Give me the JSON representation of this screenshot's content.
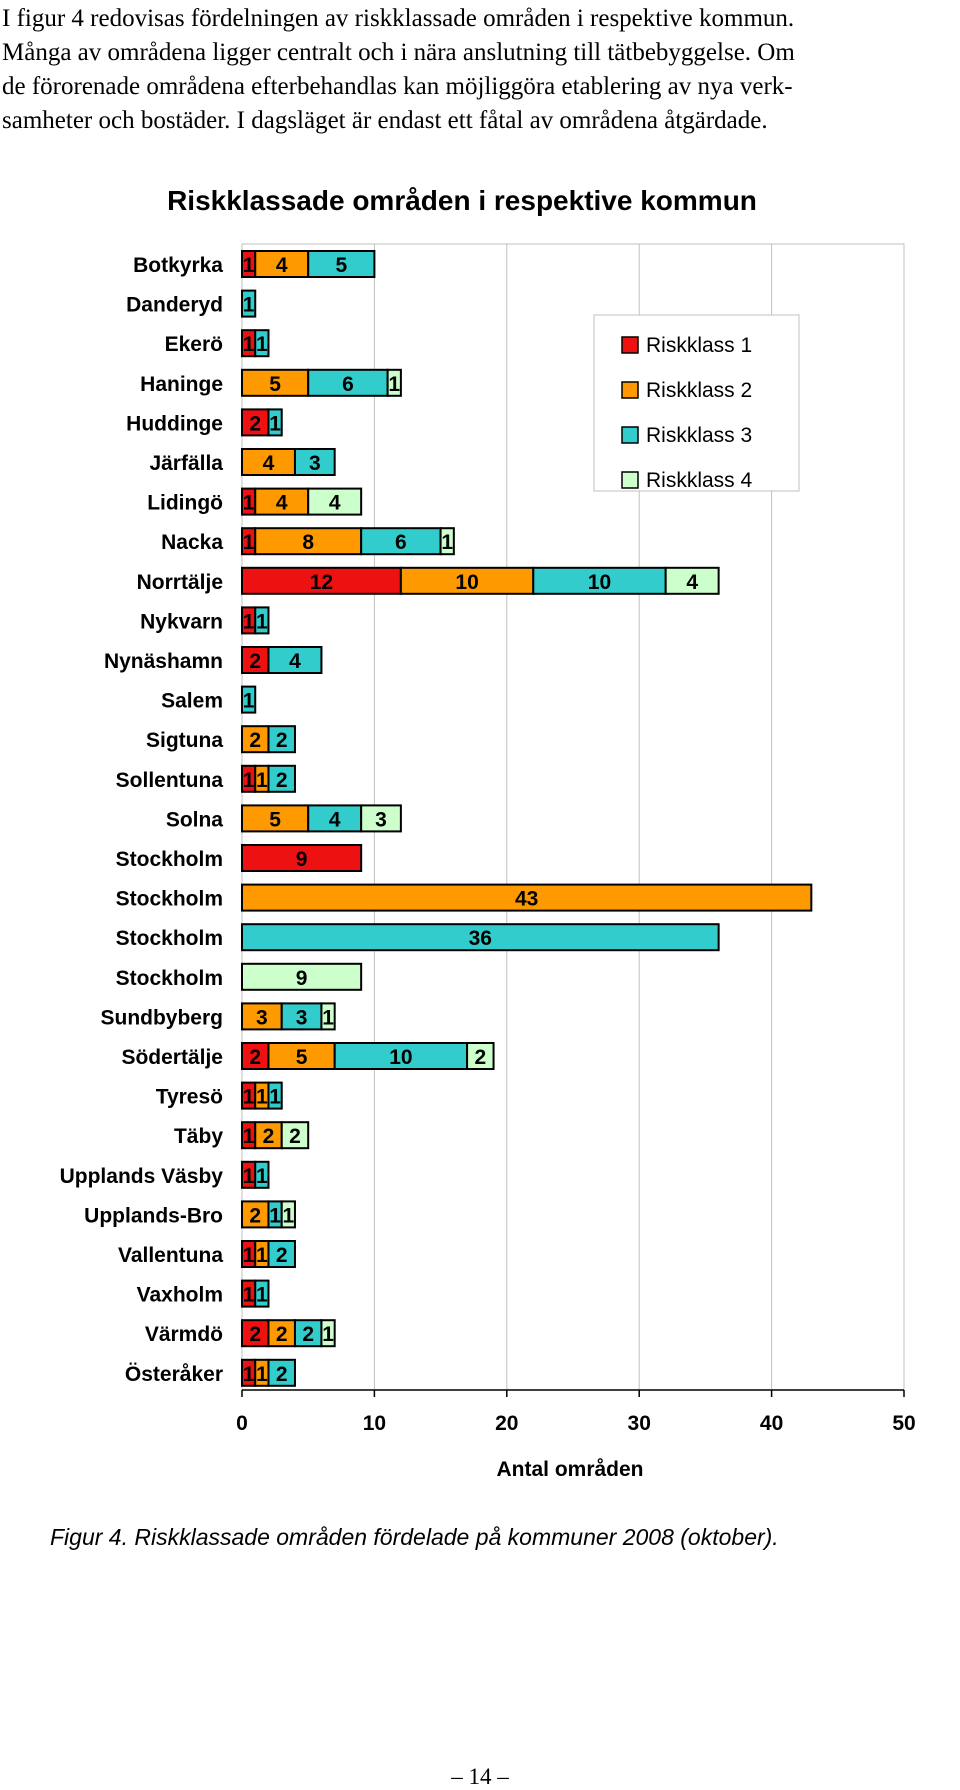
{
  "intro_lines": [
    "I figur 4 redovisas fördelningen av riskklassade områden i respektive kommun.",
    "Många av områdena ligger centralt och i nära anslutning till tätbebyggelse. Om",
    "de förorenade områdena efterbehandlas kan möjliggöra etablering av nya verk-",
    "samheter och bostäder. I dagsläget är endast ett fåtal av områdena åtgärdade."
  ],
  "caption": "Figur 4. Riskklassade områden fördelade på kommuner 2008 (oktober).",
  "page_number": "– 14 –",
  "chart_data": {
    "type": "bar",
    "orientation": "horizontal",
    "stacked": true,
    "title": "Riskklassade områden i respektive kommun",
    "xlabel": "Antal områden",
    "ylabel": "",
    "xlim": [
      0,
      50
    ],
    "xticks": [
      0,
      10,
      20,
      30,
      40,
      50
    ],
    "grid": true,
    "legend_position": "top-right",
    "categories": [
      "Botkyrka",
      "Danderyd",
      "Ekerö",
      "Haninge",
      "Huddinge",
      "Järfälla",
      "Lidingö",
      "Nacka",
      "Norrtälje",
      "Nykvarn",
      "Nynäshamn",
      "Salem",
      "Sigtuna",
      "Sollentuna",
      "Solna",
      "Stockholm",
      "Stockholm",
      "Stockholm",
      "Stockholm",
      "Sundbyberg",
      "Södertälje",
      "Tyresö",
      "Täby",
      "Upplands Väsby",
      "Upplands-Bro",
      "Vallentuna",
      "Vaxholm",
      "Värmdö",
      "Österåker"
    ],
    "series": [
      {
        "name": "Riskklass 1",
        "color": "#ee1111",
        "values": [
          1,
          0,
          1,
          0,
          2,
          0,
          1,
          1,
          12,
          1,
          2,
          0,
          0,
          1,
          0,
          9,
          0,
          0,
          0,
          0,
          2,
          1,
          1,
          1,
          0,
          1,
          1,
          2,
          1
        ]
      },
      {
        "name": "Riskklass 2",
        "color": "#ff9900",
        "values": [
          4,
          0,
          0,
          5,
          0,
          4,
          4,
          8,
          10,
          0,
          0,
          0,
          2,
          1,
          5,
          0,
          43,
          0,
          0,
          3,
          5,
          1,
          2,
          0,
          2,
          1,
          0,
          2,
          1
        ]
      },
      {
        "name": "Riskklass 3",
        "color": "#33cccc",
        "values": [
          5,
          1,
          1,
          6,
          1,
          3,
          0,
          6,
          10,
          1,
          4,
          1,
          2,
          2,
          4,
          0,
          0,
          36,
          0,
          3,
          10,
          1,
          0,
          1,
          1,
          2,
          1,
          2,
          2
        ]
      },
      {
        "name": "Riskklass 4",
        "color": "#ccffcc",
        "values": [
          0,
          0,
          0,
          1,
          0,
          0,
          4,
          1,
          4,
          0,
          0,
          0,
          0,
          0,
          3,
          0,
          0,
          0,
          9,
          1,
          2,
          0,
          2,
          0,
          1,
          0,
          0,
          1,
          0
        ]
      }
    ]
  }
}
